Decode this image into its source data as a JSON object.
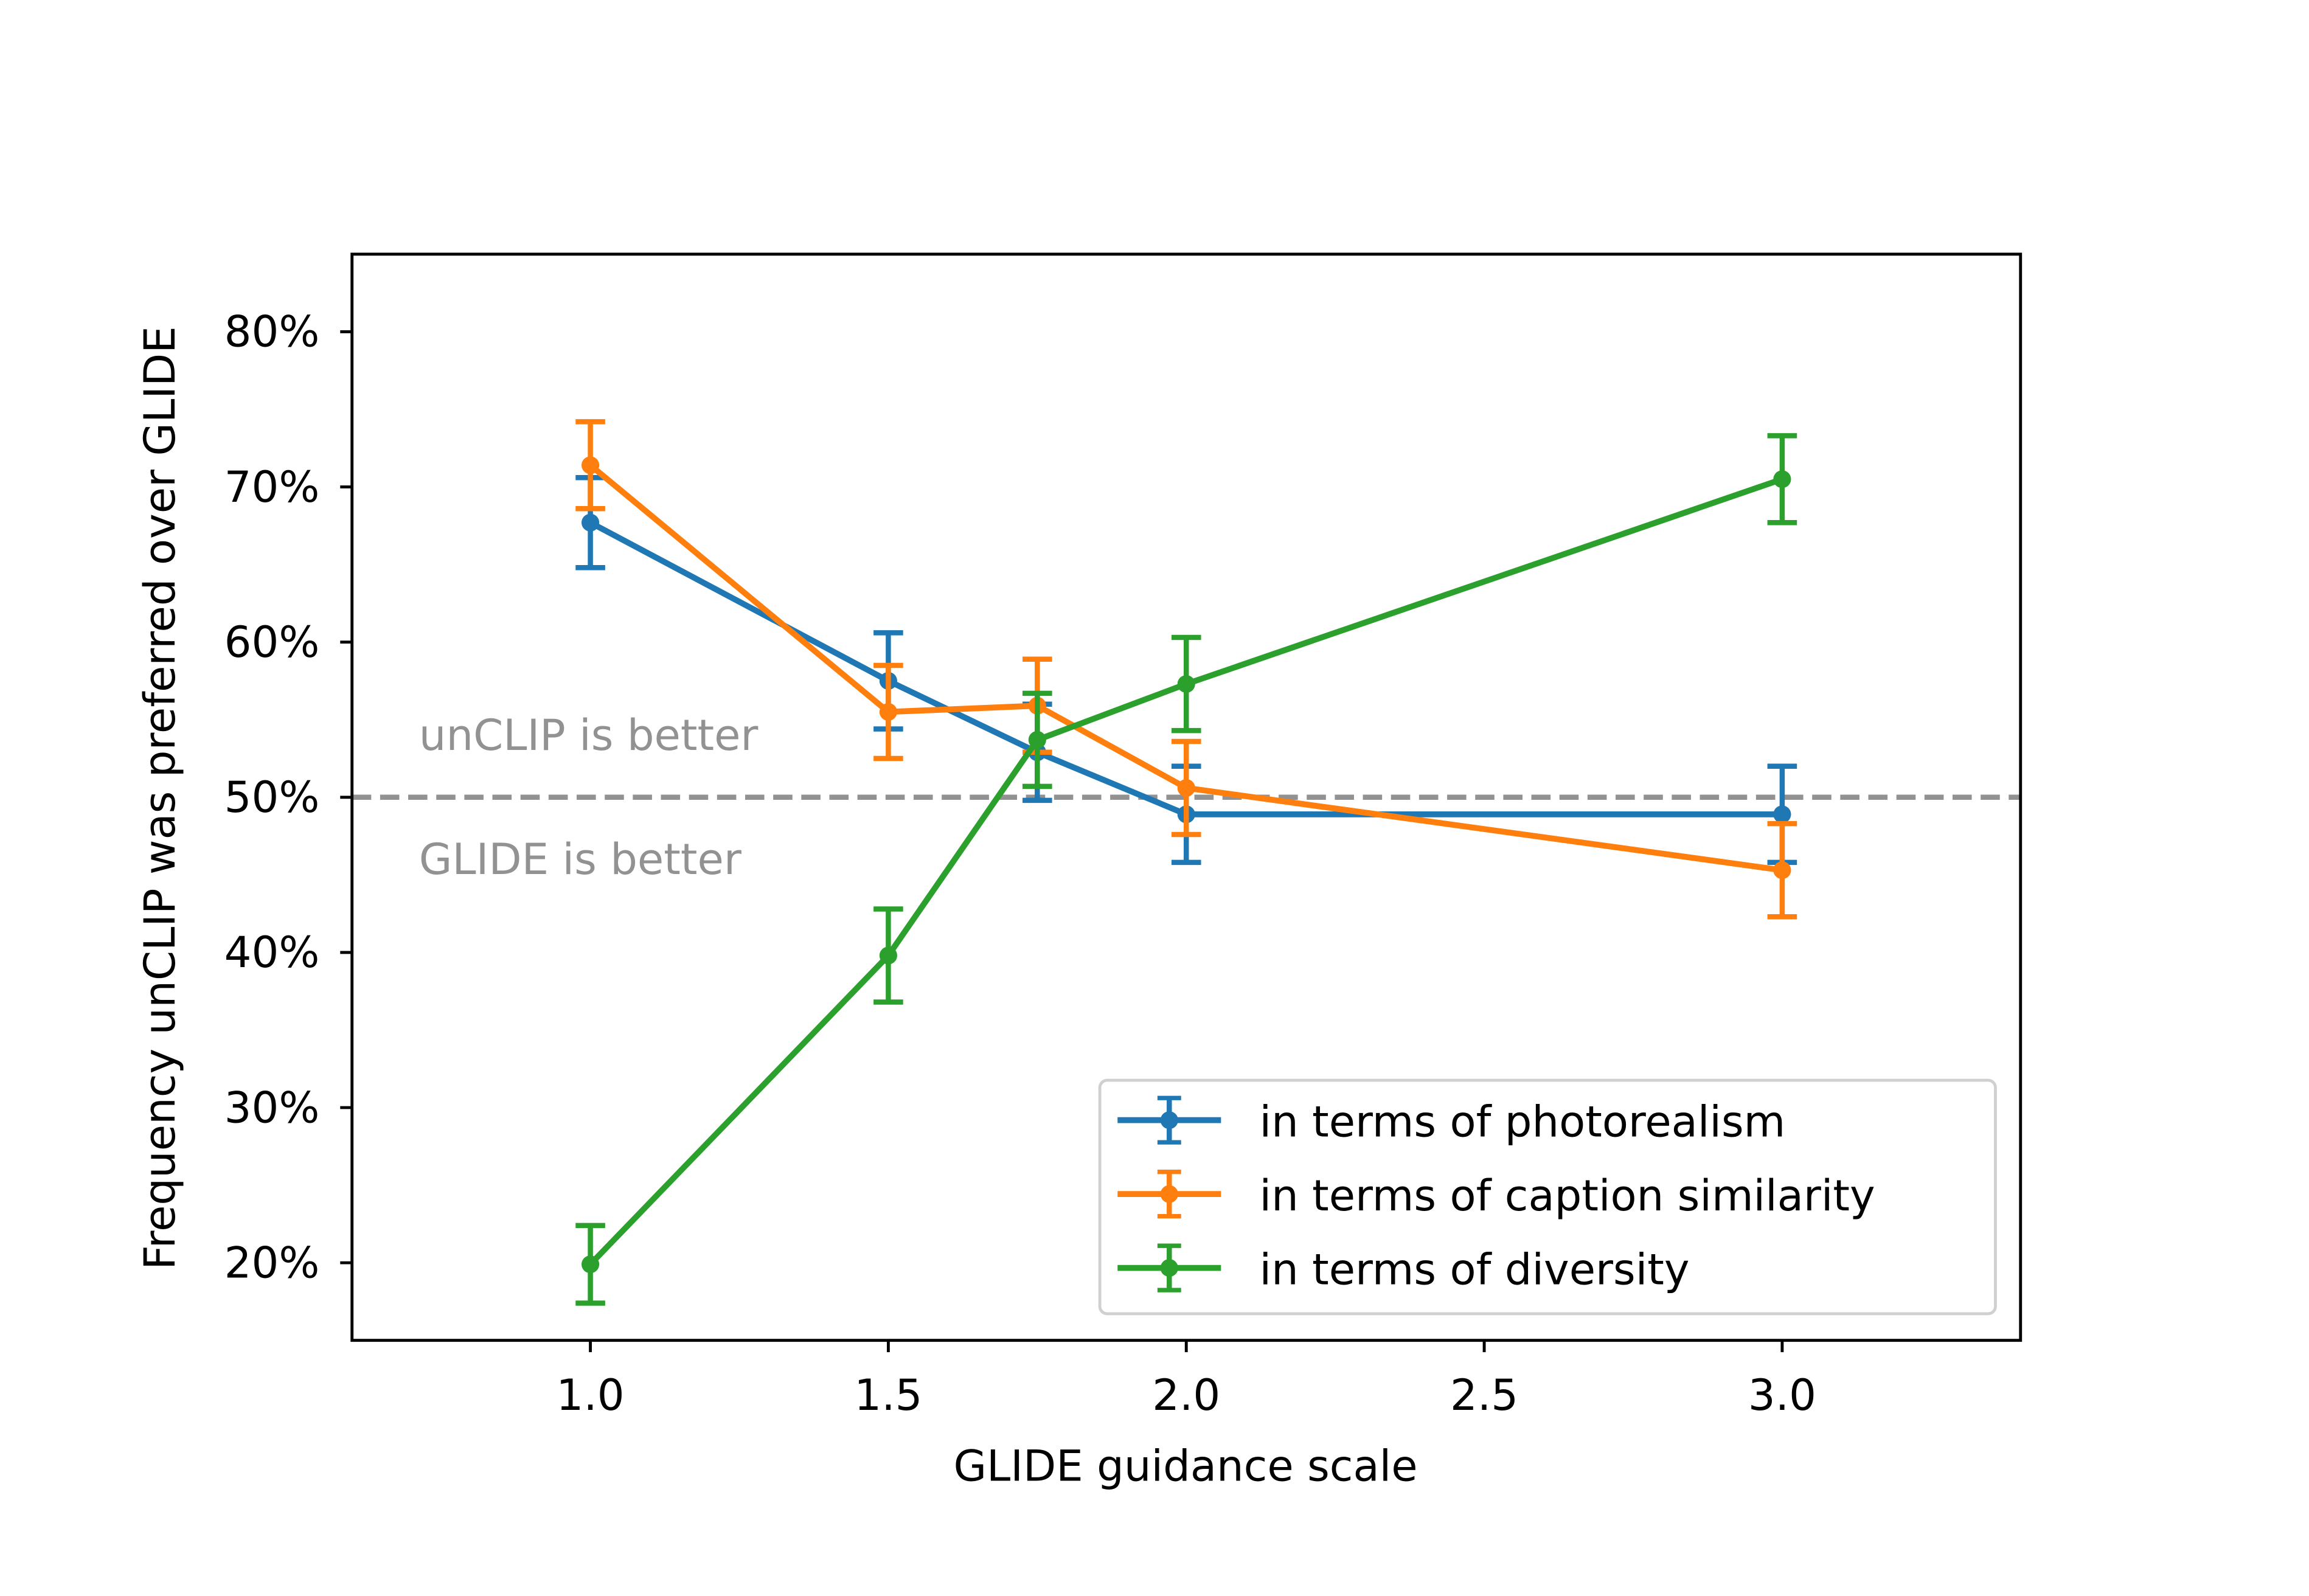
{
  "chart_data": {
    "type": "line",
    "title": "",
    "xlabel": "GLIDE guidance scale",
    "ylabel": "Frequency unCLIP was preferred over GLIDE",
    "xlim": [
      0.6,
      3.4
    ],
    "ylim": [
      15,
      85
    ],
    "xticks": [
      1.0,
      1.5,
      2.0,
      2.5,
      3.0
    ],
    "xtick_labels": [
      "1.0",
      "1.5",
      "2.0",
      "2.5",
      "3.0"
    ],
    "yticks": [
      20,
      30,
      40,
      50,
      60,
      70,
      80
    ],
    "ytick_labels": [
      "20%",
      "30%",
      "40%",
      "50%",
      "60%",
      "70%",
      "80%"
    ],
    "grid": false,
    "legend_position": "lower-right",
    "reference_line": {
      "y": 50,
      "color": "#929292",
      "style": "dashed"
    },
    "annotations": [
      {
        "text": "unCLIP is better",
        "x": 0.7,
        "y": 54
      },
      {
        "text": "GLIDE is better",
        "x": 0.7,
        "y": 46
      }
    ],
    "x": [
      1.0,
      1.5,
      1.75,
      2.0,
      3.0
    ],
    "series": [
      {
        "name": "in terms of photorealism",
        "color": "#1f77b4",
        "values": [
          67.7,
          57.5,
          52.9,
          48.9,
          48.9
        ],
        "error": [
          2.9,
          3.1,
          3.1,
          3.1,
          3.1
        ]
      },
      {
        "name": "in terms of caption similarity",
        "color": "#ff7f0e",
        "values": [
          71.4,
          55.5,
          55.9,
          50.6,
          45.3
        ],
        "error": [
          2.8,
          3.0,
          3.0,
          3.0,
          3.0
        ]
      },
      {
        "name": "in terms of diversity",
        "color": "#2ca02c",
        "values": [
          19.9,
          39.8,
          53.7,
          57.3,
          70.5
        ],
        "error": [
          2.5,
          3.0,
          3.0,
          3.0,
          2.8
        ]
      }
    ]
  }
}
